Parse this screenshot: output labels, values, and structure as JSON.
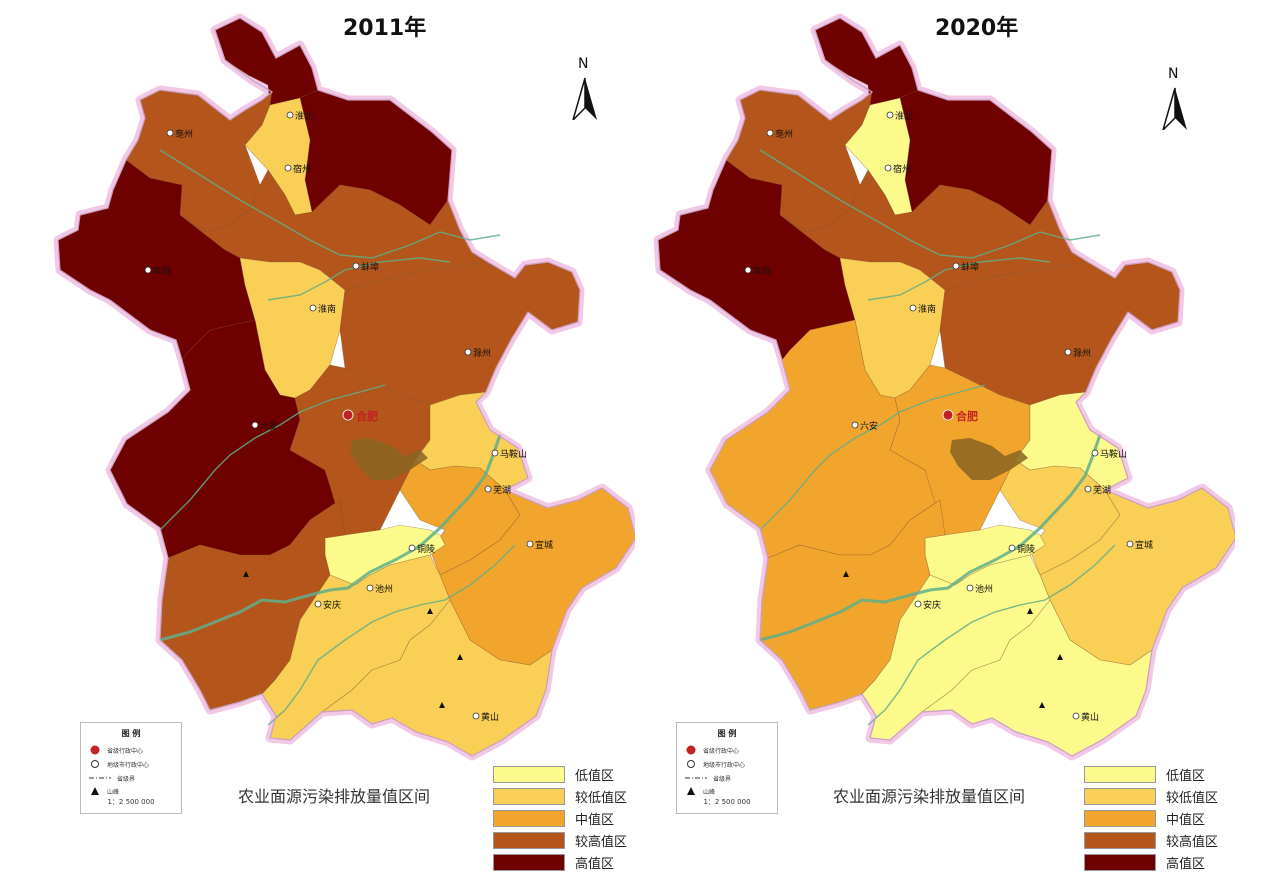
{
  "maps": [
    {
      "id": "map-2011",
      "title": "2011年",
      "region_classes": {
        "nw_tip": "high",
        "huaibei": "low",
        "suzhou": "high",
        "bozhou": "high_mid",
        "central_north": "high_mid",
        "fuyang": "high",
        "huainan": "low",
        "chuzhou": "high_mid",
        "east_tab": "high_mid",
        "luan_west": "high",
        "hefei": "high_mid",
        "maanshan": "low",
        "wuhu": "mid",
        "xuancheng": "mid",
        "tongling": "lowest",
        "anqing": "high_mid",
        "chizhou": "low",
        "huangshan": "low",
        "lake": "lake"
      }
    },
    {
      "id": "map-2020",
      "title": "2020年",
      "region_classes": {
        "nw_tip": "high",
        "huaibei": "lowest",
        "suzhou": "high",
        "bozhou": "high_mid",
        "central_north": "high_mid",
        "fuyang": "high",
        "huainan": "low",
        "chuzhou": "high_mid",
        "east_tab": "high_mid",
        "luan_west": "mid",
        "hefei": "mid",
        "maanshan": "lowest",
        "wuhu": "low",
        "xuancheng": "low",
        "tongling": "lowest",
        "anqing": "mid",
        "chizhou": "lowest",
        "huangshan": "lowest",
        "lake": "lake"
      }
    }
  ],
  "city_labels": [
    "淮北",
    "宿州",
    "亳州",
    "阜阳",
    "蚌埠",
    "淮南",
    "滁州",
    "六安",
    "合肥",
    "马鞍山",
    "芜湖",
    "宣城",
    "铜陵",
    "池州",
    "安庆",
    "黄山"
  ],
  "capital_city": "合肥",
  "north_arrow_label": "N",
  "inset_legend": {
    "title": "图 例",
    "items": [
      {
        "symbol": "capital-marker",
        "label": "省级行政中心"
      },
      {
        "symbol": "city-marker",
        "label": "地级市行政中心"
      },
      {
        "symbol": "boundary-line",
        "label": "省级界"
      },
      {
        "symbol": "peak-marker",
        "label": "山峰"
      }
    ],
    "scale": "1：2 500 000"
  },
  "legend_caption": "农业面源污染排放量值区间",
  "classes": [
    {
      "key": "lowest",
      "label": "低值区",
      "color": "#fdfa8c"
    },
    {
      "key": "low",
      "label": "较低值区",
      "color": "#f9cf55"
    },
    {
      "key": "mid",
      "label": "中值区",
      "color": "#f1a52c"
    },
    {
      "key": "high_mid",
      "label": "较高值区",
      "color": "#b4561b"
    },
    {
      "key": "high",
      "label": "高值区",
      "color": "#6e0000"
    }
  ],
  "lake_color": "#8a6421",
  "river_color": "#5fae8a",
  "boundary_color": "#f2c8e6"
}
